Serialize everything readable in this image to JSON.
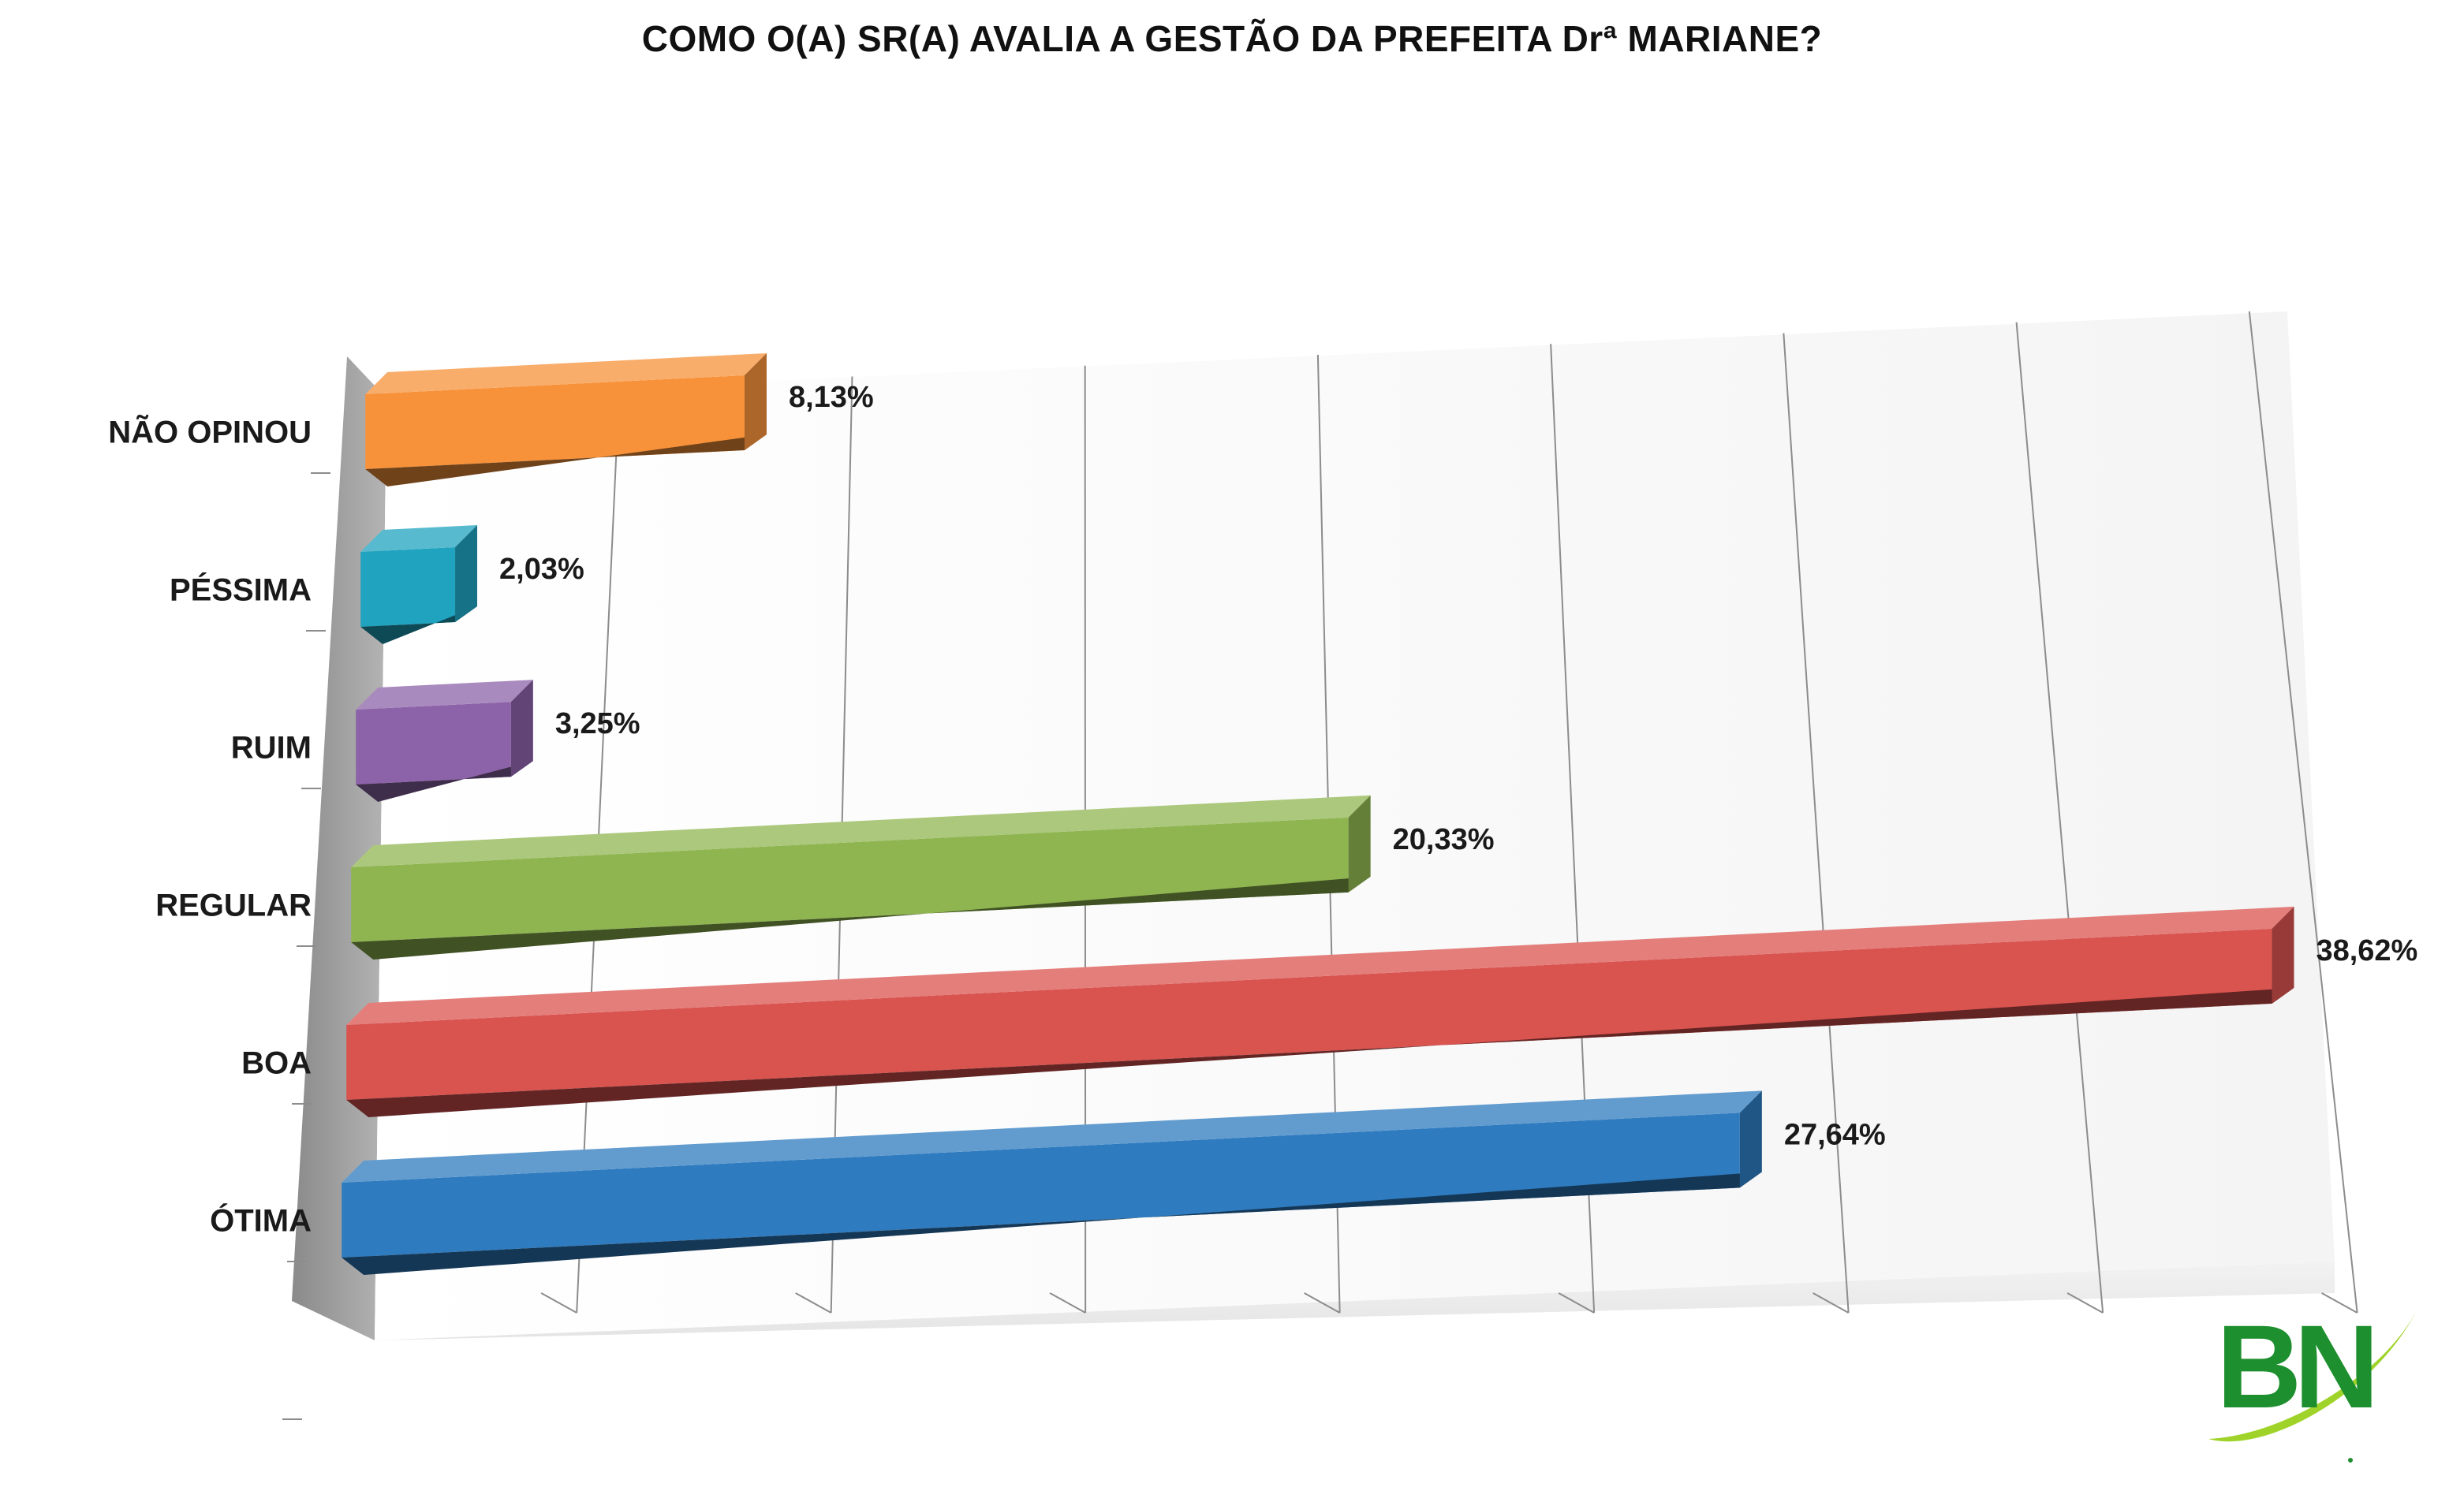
{
  "chart_data": {
    "type": "bar",
    "orientation": "horizontal",
    "style": "3d",
    "title": "COMO O(A) SR(A) AVALIA A GESTÃO DA PREFEITA Drª MARIANE?",
    "categories": [
      "NÃO OPINOU",
      "PÉSSIMA",
      "RUIM",
      "REGULAR",
      "BOA",
      "ÓTIMA"
    ],
    "values": [
      8.13,
      2.03,
      3.25,
      20.33,
      38.62,
      27.64
    ],
    "value_labels": [
      "8,13%",
      "2,03%",
      "3,25%",
      "20,33%",
      "38,62%",
      "27,64%"
    ],
    "colors": [
      "#f7923a",
      "#1fa3bf",
      "#8c63a8",
      "#8fb550",
      "#d9534f",
      "#2e7bbf"
    ],
    "xlim": [
      0,
      40
    ],
    "grid": true,
    "legend": "none"
  },
  "logo": {
    "text": "BN",
    "colors": {
      "letters": "#1e8f2e",
      "swoosh": "#9fd32a"
    }
  }
}
